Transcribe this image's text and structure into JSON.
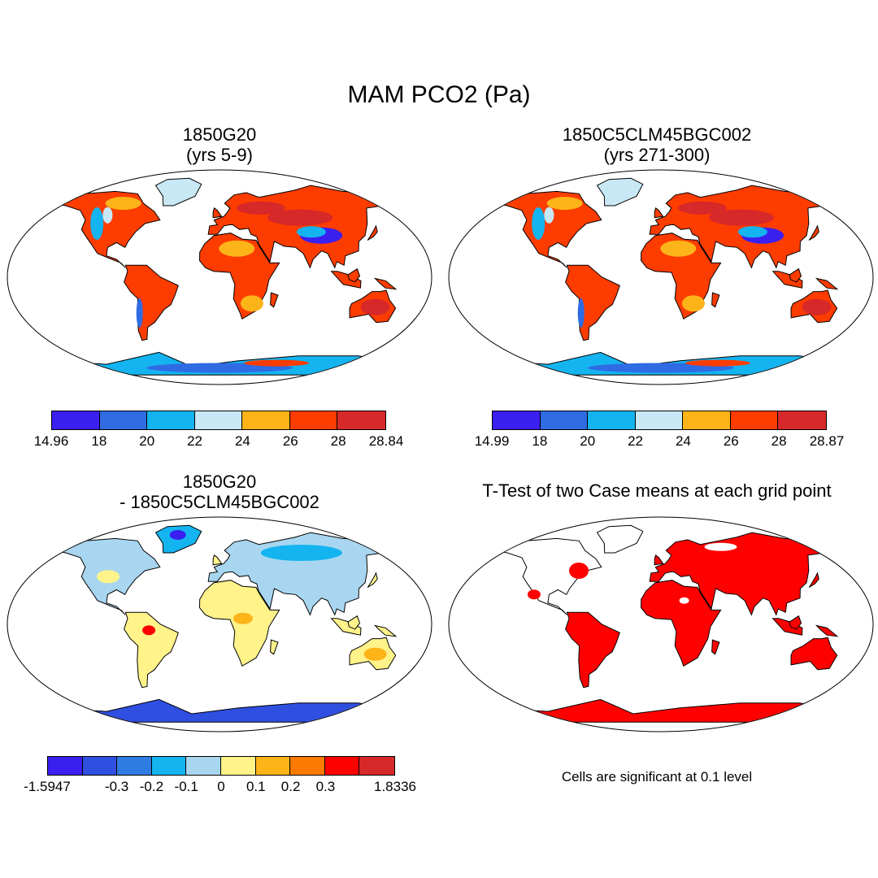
{
  "figure": {
    "title": "MAM PCO2 (Pa)"
  },
  "panels": [
    {
      "id": "p1",
      "title_line1": "1850G20",
      "title_line2": "(yrs 5-9)",
      "colorbar": {
        "labels": [
          "14.96",
          "18",
          "20",
          "22",
          "24",
          "26",
          "28",
          "28.84"
        ],
        "colors": [
          "#3a1ff0",
          "#2f6be3",
          "#14b4f0",
          "#c8e8f5",
          "#fdb418",
          "#fd3c00",
          "#d7282a"
        ]
      }
    },
    {
      "id": "p2",
      "title_line1": "1850C5CLM45BGC002",
      "title_line2": "(yrs 271-300)",
      "colorbar": {
        "labels": [
          "14.99",
          "18",
          "20",
          "22",
          "24",
          "26",
          "28",
          "28.87"
        ],
        "colors": [
          "#3a1ff0",
          "#2f6be3",
          "#14b4f0",
          "#c8e8f5",
          "#fdb418",
          "#fd3c00",
          "#d7282a"
        ]
      }
    },
    {
      "id": "p3",
      "title_line1": "1850G20",
      "title_line2": "- 1850C5CLM45BGC002",
      "colorbar": {
        "labels": [
          "-1.5947",
          "",
          "-0.3",
          "-0.2",
          "-0.1",
          "0",
          "0.1",
          "0.2",
          "0.3",
          "",
          "1.8336"
        ],
        "colors": [
          "#3a1ff0",
          "#2f4fe0",
          "#2f7de3",
          "#14b4f0",
          "#a8d6f0",
          "#fff38a",
          "#fdb418",
          "#fd7a00",
          "#fd0000",
          "#d7282a"
        ]
      }
    },
    {
      "id": "p4",
      "title_line1": "T-Test of two Case means at each grid point",
      "title_line2": "",
      "footnote": "Cells are significant at 0.1 level",
      "significance_color": "#ff0000"
    }
  ]
}
